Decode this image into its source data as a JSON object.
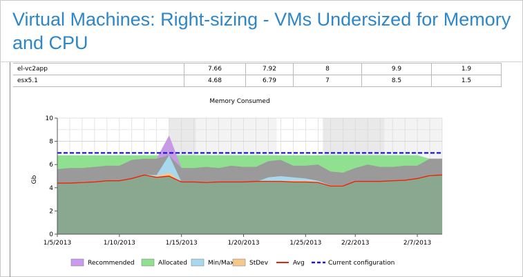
{
  "page": {
    "title": "Virtual Machines: Right-sizing - VMs Undersized for Memory and CPU"
  },
  "table": {
    "rows": [
      {
        "name": "el-vc2app",
        "values": [
          "7.66",
          "7.92",
          "8",
          "9.9",
          "1.9"
        ]
      },
      {
        "name": "esx5.1",
        "values": [
          "4.68",
          "6.79",
          "7",
          "8.5",
          "1.5"
        ]
      }
    ]
  },
  "chart_data": {
    "type": "area",
    "title": "Memory Consumed",
    "xlabel": "",
    "ylabel": "Gb",
    "ylim": [
      0,
      10
    ],
    "yticks": [
      "0",
      "2",
      "4",
      "6",
      "8",
      "10"
    ],
    "xticks": [
      "1/5/2013",
      "1/10/2013",
      "1/15/2013",
      "1/20/2013",
      "1/25/2013",
      "2/2/2013",
      "2/7/2013"
    ],
    "x": [
      0,
      1,
      2,
      3,
      4,
      5,
      6,
      7,
      8,
      9,
      10,
      11,
      12,
      13,
      14,
      15,
      16,
      17,
      18,
      19,
      20,
      21,
      22,
      23,
      24,
      25,
      26,
      27,
      28,
      29,
      30,
      31
    ],
    "grid": true,
    "colors": {
      "recommended": "#cc99ee",
      "allocated": "#8fe08f",
      "minmax": "#a8d8ee",
      "stdev": "#f5c98a",
      "avg": "#ee2200",
      "current": "#1a1acc",
      "mass": "#8aa890",
      "band": "#9a9a9a"
    },
    "series": [
      {
        "name": "Recommended",
        "values": [
          5.6,
          5.7,
          5.7,
          5.8,
          5.9,
          5.9,
          6.4,
          6.5,
          6.5,
          8.5,
          5.7,
          5.7,
          5.8,
          5.7,
          5.9,
          5.8,
          5.8,
          6.3,
          6.4,
          5.9,
          5.9,
          6.0,
          5.4,
          5.3,
          5.7,
          6.0,
          5.8,
          5.8,
          5.9,
          5.9,
          6.5,
          6.5
        ]
      },
      {
        "name": "Allocated",
        "values": [
          6.8,
          6.8,
          6.8,
          6.8,
          6.8,
          6.8,
          6.8,
          6.8,
          6.8,
          6.8,
          6.8,
          6.8,
          6.8,
          6.8,
          6.8,
          6.8,
          6.8,
          6.8,
          6.8,
          6.8,
          6.8,
          6.8,
          6.8,
          6.8,
          6.8,
          6.8,
          6.8,
          6.8,
          6.8,
          6.8,
          6.5,
          6.5
        ]
      },
      {
        "name": "Min/Max",
        "values": [
          4.4,
          4.4,
          4.5,
          4.5,
          4.6,
          4.6,
          4.8,
          5.1,
          5.1,
          6.8,
          4.5,
          4.5,
          4.5,
          4.5,
          4.5,
          4.5,
          4.5,
          4.9,
          5.0,
          4.9,
          4.8,
          4.6,
          4.2,
          4.2,
          4.5,
          4.5,
          4.5,
          4.5,
          4.6,
          4.6,
          5.1,
          5.1
        ]
      },
      {
        "name": "StDev",
        "values": [
          4.4,
          4.4,
          4.5,
          4.5,
          4.6,
          4.6,
          4.8,
          5.1,
          5.0,
          5.3,
          4.5,
          4.5,
          4.5,
          4.5,
          4.5,
          4.5,
          4.5,
          4.6,
          4.6,
          4.6,
          4.6,
          4.5,
          4.2,
          4.2,
          4.5,
          4.5,
          4.5,
          4.5,
          4.6,
          4.6,
          5.0,
          5.0
        ]
      },
      {
        "name": "Avg",
        "values": [
          4.4,
          4.4,
          4.45,
          4.5,
          4.6,
          4.6,
          4.8,
          5.1,
          4.9,
          5.0,
          4.5,
          4.5,
          4.45,
          4.5,
          4.5,
          4.5,
          4.55,
          4.55,
          4.55,
          4.5,
          4.5,
          4.45,
          4.15,
          4.15,
          4.55,
          4.55,
          4.55,
          4.6,
          4.65,
          4.8,
          5.05,
          5.1
        ]
      },
      {
        "name": "Current configuration",
        "values": [
          7,
          7,
          7,
          7,
          7,
          7,
          7,
          7,
          7,
          7,
          7,
          7,
          7,
          7,
          7,
          7,
          7,
          7,
          7,
          7,
          7,
          7,
          7,
          7,
          7,
          7,
          7,
          7,
          7,
          7,
          7,
          7
        ]
      }
    ],
    "legend": {
      "position": "bottom",
      "items": [
        {
          "label": "Recommended",
          "kind": "box",
          "color": "#cc99ee"
        },
        {
          "label": "Allocated",
          "kind": "box",
          "color": "#8fe08f"
        },
        {
          "label": "Min/Max",
          "kind": "box",
          "color": "#a8d8ee"
        },
        {
          "label": "StDev",
          "kind": "box",
          "color": "#f5c98a"
        },
        {
          "label": "Avg",
          "kind": "line",
          "color": "#ee2200"
        },
        {
          "label": "Current configuration",
          "kind": "dash",
          "color": "#1a1acc"
        }
      ]
    }
  }
}
